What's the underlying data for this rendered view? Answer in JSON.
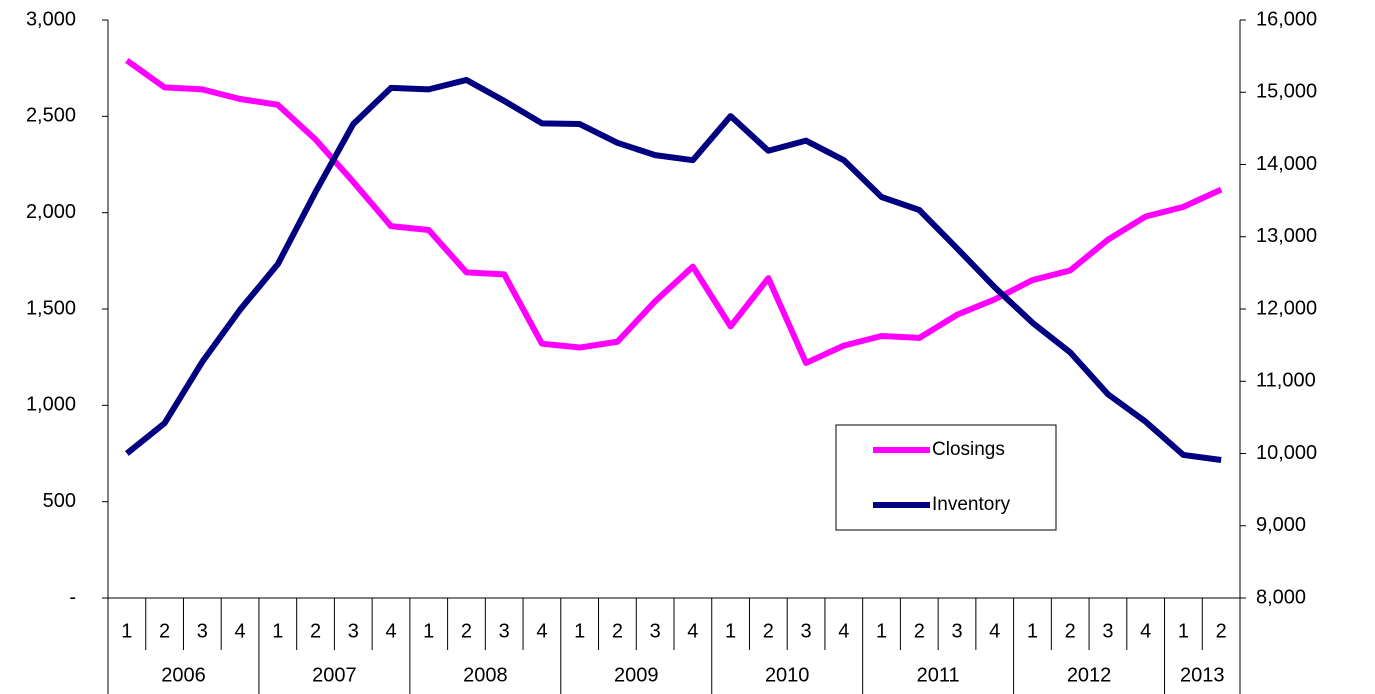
{
  "chart_data": {
    "type": "line",
    "categories": [
      "1",
      "2",
      "3",
      "4",
      "1",
      "2",
      "3",
      "4",
      "1",
      "2",
      "3",
      "4",
      "1",
      "2",
      "3",
      "4",
      "1",
      "2",
      "3",
      "4",
      "1",
      "2",
      "3",
      "4",
      "1",
      "2",
      "3",
      "4",
      "1",
      "2"
    ],
    "years": [
      "2006",
      "2007",
      "2008",
      "2009",
      "2010",
      "2011",
      "2012",
      "2013"
    ],
    "series": [
      {
        "name": "Closings",
        "color": "#ff00ff",
        "values": [
          2790,
          2650,
          2640,
          2590,
          2560,
          2380,
          2160,
          1930,
          1910,
          1690,
          1680,
          1320,
          1300,
          1330,
          1540,
          1720,
          1410,
          1660,
          1220,
          1310,
          1360,
          1350,
          1470,
          1550,
          1650,
          1700,
          1860,
          1980,
          2030,
          2120
        ]
      },
      {
        "name": "Inventory",
        "color": "#000080",
        "axis": "y2",
        "values": [
          10000,
          10420,
          11270,
          11990,
          12620,
          13620,
          14560,
          15060,
          15040,
          15170,
          14880,
          14570,
          14560,
          14300,
          14130,
          14060,
          14670,
          14190,
          14330,
          14060,
          13550,
          13370,
          12840,
          12300,
          11810,
          11400,
          10820,
          10440,
          9980,
          9910
        ]
      }
    ],
    "ylim": [
      0,
      3000
    ],
    "yticks": [
      {
        "value": 0,
        "label": "-"
      },
      500,
      {
        "value": 1000,
        "label": "1,000"
      },
      {
        "value": 1500,
        "label": "1,500"
      },
      {
        "value": 2000,
        "label": "2,000"
      },
      {
        "value": 2500,
        "label": "2,500"
      },
      {
        "value": 3000,
        "label": "3,000"
      }
    ],
    "y2lim": [
      8000,
      16000
    ],
    "y2ticks": [
      {
        "value": 8000,
        "label": "8,000"
      },
      {
        "value": 9000,
        "label": "9,000"
      },
      {
        "value": 10000,
        "label": "10,000"
      },
      {
        "value": 11000,
        "label": "11,000"
      },
      {
        "value": 12000,
        "label": "12,000"
      },
      {
        "value": 13000,
        "label": "13,000"
      },
      {
        "value": 14000,
        "label": "14,000"
      },
      {
        "value": 15000,
        "label": "15,000"
      },
      {
        "value": 16000,
        "label": "16,000"
      }
    ],
    "legend": "inside-right"
  }
}
